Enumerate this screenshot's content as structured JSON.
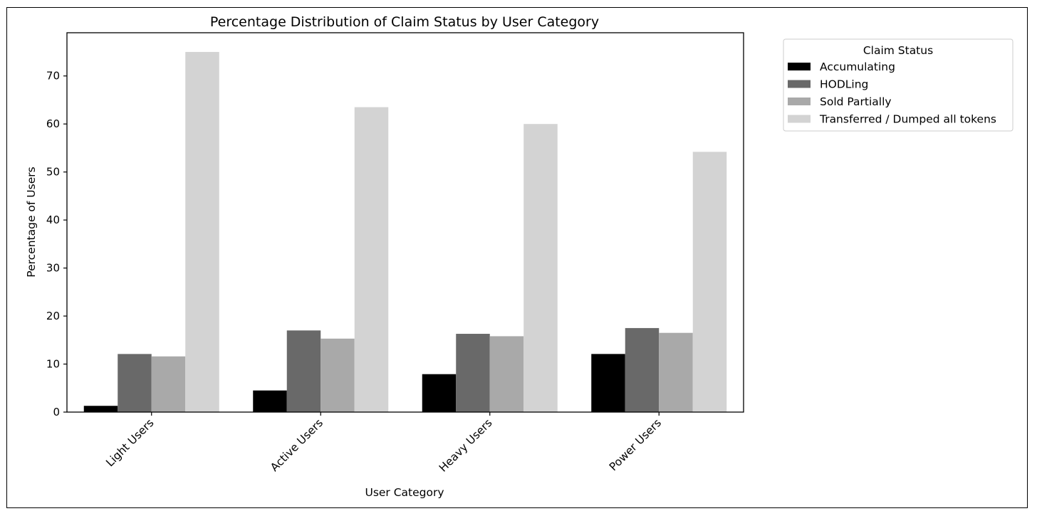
{
  "chart_data": {
    "type": "bar",
    "title": "Percentage Distribution of Claim Status by User Category",
    "xlabel": "User Category",
    "ylabel": "Percentage of Users",
    "categories": [
      "Light Users",
      "Active Users",
      "Heavy Users",
      "Power Users"
    ],
    "ylim": [
      0,
      79
    ],
    "yticks": [
      0,
      10,
      20,
      30,
      40,
      50,
      60,
      70
    ],
    "grid": false,
    "legend": {
      "title": "Claim Status",
      "placement": "outside top-right"
    },
    "series": [
      {
        "name": "Accumulating",
        "color": "#000000",
        "values": [
          1.3,
          4.5,
          7.9,
          12.1
        ]
      },
      {
        "name": "HODLing",
        "color": "#696969",
        "values": [
          12.1,
          17.0,
          16.3,
          17.5
        ]
      },
      {
        "name": "Sold Partially",
        "color": "#a9a9a9",
        "values": [
          11.6,
          15.3,
          15.8,
          16.5
        ]
      },
      {
        "name": "Transferred / Dumped all tokens",
        "color": "#d3d3d3",
        "values": [
          75.0,
          63.5,
          60.0,
          54.2
        ]
      }
    ]
  }
}
